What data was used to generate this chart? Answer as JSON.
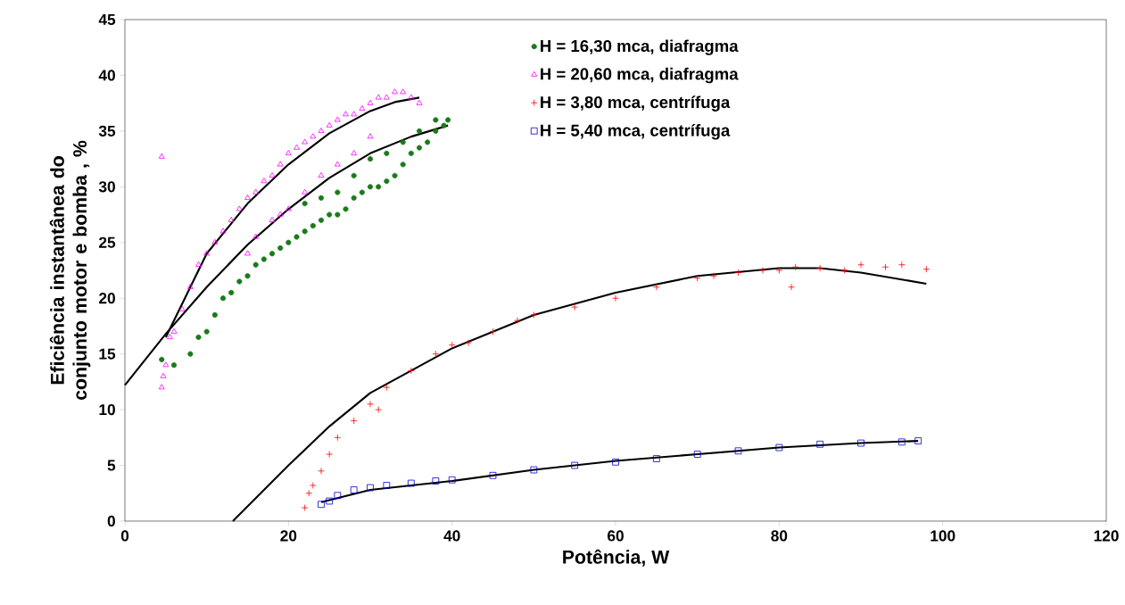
{
  "chart_data": {
    "type": "scatter",
    "xlabel": "Potência, W",
    "ylabel": "Eficiência  instantânea do conjunto motor e bomba , %",
    "xlim": [
      0,
      120
    ],
    "ylim": [
      0,
      45
    ],
    "xticks": [
      0,
      20,
      40,
      60,
      80,
      100,
      120
    ],
    "yticks": [
      0,
      5,
      10,
      15,
      20,
      25,
      30,
      35,
      40,
      45
    ],
    "grid": false,
    "legend": "top",
    "series": [
      {
        "name": "H = 16,30 mca, diafragma",
        "color": "#1a7a1a",
        "marker": "circle",
        "x": [
          4.5,
          6,
          8,
          9,
          10,
          11,
          12,
          13,
          14,
          15,
          16,
          17,
          18,
          19,
          20,
          21,
          22,
          23,
          24,
          25,
          26,
          27,
          28,
          29,
          30,
          31,
          32,
          33,
          34,
          35,
          36,
          37,
          38,
          39,
          39.5,
          22,
          24,
          26,
          28,
          30,
          32,
          34,
          36,
          38
        ],
        "values": [
          14.5,
          14,
          15,
          16.5,
          17,
          18.5,
          20,
          20.5,
          21.5,
          22,
          23,
          23.5,
          24,
          24.5,
          25,
          25.5,
          26,
          26.5,
          27,
          27.5,
          27.5,
          28,
          29,
          29.5,
          30,
          30,
          30.5,
          31,
          32,
          33,
          33.5,
          34,
          35,
          35.5,
          36,
          28.5,
          29,
          29.5,
          31,
          32.5,
          33,
          34,
          35,
          36
        ]
      },
      {
        "name": "H = 20,60 mca, diafragma",
        "color": "#ff00ff",
        "marker": "triangle",
        "x": [
          4.5,
          4.7,
          5,
          5.5,
          6,
          7,
          8,
          9,
          10,
          11,
          12,
          13,
          14,
          15,
          16,
          17,
          18,
          19,
          20,
          21,
          22,
          23,
          24,
          25,
          26,
          27,
          28,
          29,
          30,
          31,
          32,
          33,
          34,
          35,
          36,
          15,
          16,
          18,
          19,
          20,
          22,
          24,
          26,
          28,
          30,
          4.5
        ],
        "values": [
          12,
          13,
          14,
          16.5,
          17,
          19,
          21,
          23,
          24,
          25,
          26,
          27,
          28,
          29,
          29.5,
          30.5,
          31,
          32,
          33,
          33.5,
          34,
          34.5,
          35,
          35.5,
          36,
          36.5,
          36.5,
          37,
          37.5,
          38,
          38,
          38.5,
          38.5,
          38,
          37.5,
          24,
          25.5,
          27,
          27.5,
          28,
          29.5,
          31,
          32,
          33,
          34.5,
          32.7
        ]
      },
      {
        "name": "H = 3,80 mca, centrífuga",
        "color": "#ff0000",
        "marker": "cross",
        "x": [
          22,
          22.5,
          23,
          24,
          25,
          26,
          28,
          30,
          31,
          32,
          35,
          38,
          40,
          42,
          45,
          48,
          50,
          55,
          60,
          65,
          70,
          72,
          75,
          78,
          80,
          81.5,
          82,
          85,
          88,
          90,
          93,
          95,
          98
        ],
        "values": [
          1.2,
          2.5,
          3.2,
          4.5,
          6,
          7.5,
          9,
          10.5,
          10,
          12,
          13.5,
          15,
          15.8,
          16,
          17,
          18,
          18.5,
          19.2,
          20,
          21,
          21.8,
          22,
          22.3,
          22.5,
          22.5,
          21,
          22.8,
          22.7,
          22.5,
          23,
          22.8,
          23,
          22.6
        ]
      },
      {
        "name": "H = 5,40 mca, centrífuga",
        "color": "#0000cc",
        "marker": "square",
        "x": [
          24,
          25,
          26,
          28,
          30,
          32,
          35,
          38,
          40,
          45,
          50,
          55,
          60,
          65,
          70,
          75,
          80,
          85,
          90,
          95,
          97
        ],
        "values": [
          1.5,
          1.8,
          2.3,
          2.8,
          3,
          3.2,
          3.4,
          3.6,
          3.7,
          4.1,
          4.6,
          5,
          5.3,
          5.6,
          6,
          6.3,
          6.6,
          6.9,
          7,
          7.1,
          7.2
        ]
      },
      {
        "type": "line",
        "color": "#000000",
        "marker": "none",
        "x": [
          5,
          10,
          15,
          20,
          25,
          30,
          33,
          36
        ],
        "values": [
          16.5,
          24,
          28.5,
          32,
          34.8,
          36.8,
          37.6,
          38
        ]
      },
      {
        "type": "line",
        "color": "#000000",
        "marker": "none",
        "x": [
          0,
          5,
          10,
          15,
          20,
          25,
          30,
          35,
          39.5
        ],
        "values": [
          12.2,
          16.8,
          21,
          24.8,
          28,
          30.8,
          33,
          34.5,
          35.5
        ]
      },
      {
        "type": "line",
        "color": "#000000",
        "marker": "none",
        "x": [
          13.2,
          20,
          25,
          30,
          40,
          50,
          60,
          70,
          80,
          85,
          90,
          98
        ],
        "values": [
          0,
          5,
          8.5,
          11.5,
          15.5,
          18.5,
          20.5,
          22,
          22.7,
          22.7,
          22.3,
          21.3
        ]
      },
      {
        "type": "line",
        "color": "#000000",
        "marker": "none",
        "x": [
          24,
          30,
          40,
          50,
          60,
          70,
          80,
          90,
          97
        ],
        "values": [
          1.7,
          2.8,
          3.6,
          4.6,
          5.4,
          6,
          6.6,
          7,
          7.2
        ]
      }
    ]
  }
}
